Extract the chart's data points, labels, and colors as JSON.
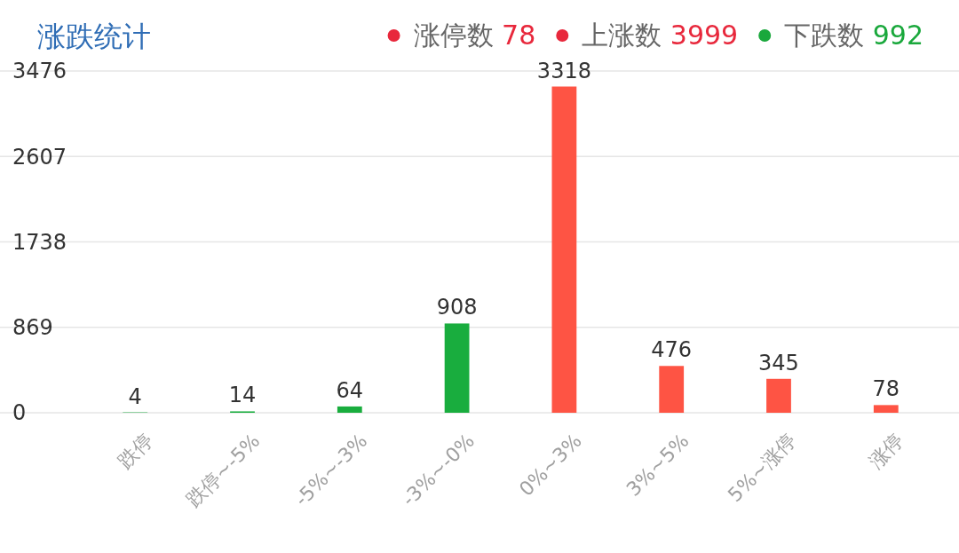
{
  "chart_data": {
    "type": "bar",
    "title": "涨跌统计",
    "annotations": [
      "涨停数 78",
      "上涨数 3999",
      "下跌数 992"
    ],
    "categories": [
      "跌停",
      "跌停~-5%",
      "-5%~-3%",
      "-3%~-0%",
      "0%~3%",
      "3%~5%",
      "5%~涨停",
      "涨停"
    ],
    "values": [
      4,
      14,
      64,
      908,
      3318,
      476,
      345,
      78
    ],
    "colors": [
      "#19ad3e",
      "#19ad3e",
      "#19ad3e",
      "#19ad3e",
      "#fe5444",
      "#fe5444",
      "#fe5444",
      "#fe5444"
    ],
    "ylim": [
      0,
      3476
    ],
    "yticks": [
      0,
      869,
      1738,
      2607,
      3476
    ],
    "grid": "y",
    "data_labels": true
  }
}
